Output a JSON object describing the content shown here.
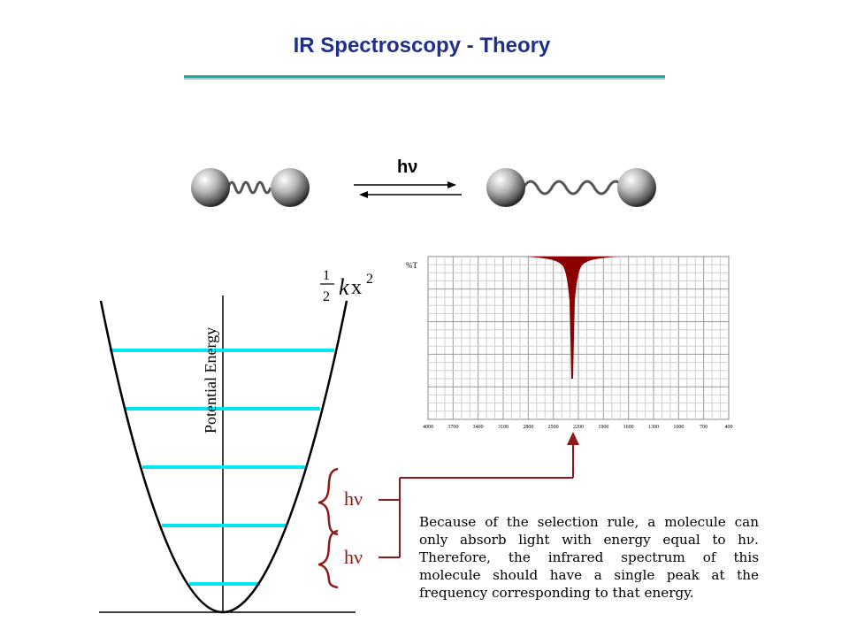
{
  "header": {
    "title": "IR Spectroscopy - Theory"
  },
  "molecule": {
    "photon_label": "hν"
  },
  "potential_well": {
    "y_axis_label": "Potential Energy",
    "equation": {
      "numerator": "1",
      "denominator": "2",
      "variable_k": "k",
      "variable_x": "x",
      "exponent": "2"
    },
    "transition_labels": [
      "hν",
      "hν"
    ],
    "energy_level_color": "#00e5ee",
    "bracket_color": "#8b1a1a"
  },
  "spectrum": {
    "y_axis_label": "%T",
    "x_tick_labels": [
      "4000",
      "3700",
      "3400",
      "3100",
      "2800",
      "2500",
      "2200",
      "1900",
      "1600",
      "1300",
      "1000",
      "700",
      "400"
    ],
    "peak_color": "#8b0000"
  },
  "caption": {
    "lines": [
      "Because of the selection rule, a molecule can",
      "only absorb light with energy equal to hν.",
      "Therefore, the infrared spectrum of this",
      "molecule should have a single peak at the",
      "frequency corresponding to that energy."
    ]
  }
}
